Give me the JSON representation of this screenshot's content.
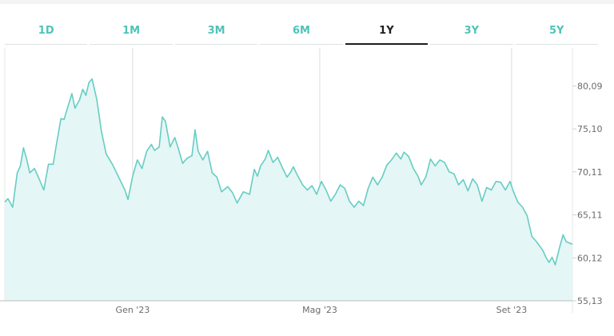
{
  "tabs": [
    {
      "label": "1D",
      "active": false
    },
    {
      "label": "1M",
      "active": false
    },
    {
      "label": "3M",
      "active": false
    },
    {
      "label": "6M",
      "active": false
    },
    {
      "label": "1Y",
      "active": true
    },
    {
      "label": "3Y",
      "active": false
    },
    {
      "label": "5Y",
      "active": false
    }
  ],
  "colors": {
    "tab_text": "#4fc3b8",
    "tab_active": "#1b1f22",
    "line": "#66cdc4",
    "area": "#e4f6f5"
  },
  "chart_data": {
    "type": "area",
    "title": "",
    "xlabel": "",
    "ylabel": "",
    "ylim": [
      55.13,
      84.5
    ],
    "y_ticks": [
      "55,13",
      "60,12",
      "65,11",
      "70,11",
      "75,10",
      "80,09"
    ],
    "y_tick_values": [
      55.13,
      60.12,
      65.11,
      70.11,
      75.1,
      80.09
    ],
    "x_ticks": [
      {
        "label": "Gen '23",
        "x": "2023-01-01"
      },
      {
        "label": "Mag '23",
        "x": "2023-05-01"
      },
      {
        "label": "Set '23",
        "x": "2023-09-01"
      }
    ],
    "x_range": [
      "2022-10-11",
      "2023-10-10"
    ],
    "grid": "vertical",
    "series": [
      {
        "values": [
          [
            "2022-10-11",
            66.6
          ],
          [
            "2022-10-13",
            67.0
          ],
          [
            "2022-10-16",
            66.0
          ],
          [
            "2022-10-19",
            70.0
          ],
          [
            "2022-10-21",
            70.8
          ],
          [
            "2022-10-23",
            72.9
          ],
          [
            "2022-10-25",
            71.6
          ],
          [
            "2022-10-27",
            70.0
          ],
          [
            "2022-10-30",
            70.5
          ],
          [
            "2022-11-02",
            69.3
          ],
          [
            "2022-11-05",
            68.0
          ],
          [
            "2022-11-08",
            71.0
          ],
          [
            "2022-11-11",
            71.0
          ],
          [
            "2022-11-13",
            73.2
          ],
          [
            "2022-11-16",
            76.3
          ],
          [
            "2022-11-18",
            76.2
          ],
          [
            "2022-11-21",
            78.0
          ],
          [
            "2022-11-23",
            79.2
          ],
          [
            "2022-11-25",
            77.5
          ],
          [
            "2022-11-28",
            78.5
          ],
          [
            "2022-11-30",
            79.7
          ],
          [
            "2022-12-02",
            79.0
          ],
          [
            "2022-12-04",
            80.5
          ],
          [
            "2022-12-06",
            80.9
          ],
          [
            "2022-12-09",
            78.5
          ],
          [
            "2022-12-12",
            74.8
          ],
          [
            "2022-12-15",
            72.2
          ],
          [
            "2022-12-19",
            71.0
          ],
          [
            "2022-12-23",
            69.5
          ],
          [
            "2022-12-27",
            68.0
          ],
          [
            "2022-12-29",
            66.9
          ],
          [
            "2023-01-01",
            69.6
          ],
          [
            "2023-01-04",
            71.5
          ],
          [
            "2023-01-07",
            70.5
          ],
          [
            "2023-01-10",
            72.5
          ],
          [
            "2023-01-13",
            73.3
          ],
          [
            "2023-01-15",
            72.6
          ],
          [
            "2023-01-18",
            73.0
          ],
          [
            "2023-01-20",
            76.5
          ],
          [
            "2023-01-22",
            76.0
          ],
          [
            "2023-01-25",
            73.0
          ],
          [
            "2023-01-28",
            74.1
          ],
          [
            "2023-01-30",
            73.0
          ],
          [
            "2023-02-02",
            71.1
          ],
          [
            "2023-02-05",
            71.7
          ],
          [
            "2023-02-08",
            72.0
          ],
          [
            "2023-02-10",
            75.0
          ],
          [
            "2023-02-12",
            72.5
          ],
          [
            "2023-02-15",
            71.5
          ],
          [
            "2023-02-18",
            72.5
          ],
          [
            "2023-02-21",
            70.0
          ],
          [
            "2023-02-24",
            69.5
          ],
          [
            "2023-02-27",
            67.8
          ],
          [
            "2023-03-03",
            68.4
          ],
          [
            "2023-03-06",
            67.7
          ],
          [
            "2023-03-09",
            66.5
          ],
          [
            "2023-03-13",
            67.8
          ],
          [
            "2023-03-17",
            67.5
          ],
          [
            "2023-03-20",
            70.4
          ],
          [
            "2023-03-22",
            69.6
          ],
          [
            "2023-03-24",
            70.8
          ],
          [
            "2023-03-27",
            71.6
          ],
          [
            "2023-03-29",
            72.6
          ],
          [
            "2023-04-01",
            71.2
          ],
          [
            "2023-04-04",
            71.8
          ],
          [
            "2023-04-07",
            70.6
          ],
          [
            "2023-04-10",
            69.5
          ],
          [
            "2023-04-12",
            70.0
          ],
          [
            "2023-04-14",
            70.7
          ],
          [
            "2023-04-17",
            69.6
          ],
          [
            "2023-04-20",
            68.6
          ],
          [
            "2023-04-23",
            68.0
          ],
          [
            "2023-04-26",
            68.5
          ],
          [
            "2023-04-29",
            67.5
          ],
          [
            "2023-05-02",
            69.0
          ],
          [
            "2023-05-05",
            68.0
          ],
          [
            "2023-05-08",
            66.7
          ],
          [
            "2023-05-11",
            67.5
          ],
          [
            "2023-05-14",
            68.6
          ],
          [
            "2023-05-17",
            68.2
          ],
          [
            "2023-05-20",
            66.7
          ],
          [
            "2023-05-23",
            66.0
          ],
          [
            "2023-05-26",
            66.7
          ],
          [
            "2023-05-29",
            66.2
          ],
          [
            "2023-06-01",
            68.2
          ],
          [
            "2023-06-04",
            69.5
          ],
          [
            "2023-06-07",
            68.6
          ],
          [
            "2023-06-10",
            69.5
          ],
          [
            "2023-06-13",
            70.9
          ],
          [
            "2023-06-16",
            71.5
          ],
          [
            "2023-06-19",
            72.3
          ],
          [
            "2023-06-22",
            71.6
          ],
          [
            "2023-06-24",
            72.4
          ],
          [
            "2023-06-27",
            71.9
          ],
          [
            "2023-06-30",
            70.5
          ],
          [
            "2023-07-03",
            69.6
          ],
          [
            "2023-07-05",
            68.6
          ],
          [
            "2023-07-08",
            69.5
          ],
          [
            "2023-07-11",
            71.6
          ],
          [
            "2023-07-14",
            70.8
          ],
          [
            "2023-07-17",
            71.5
          ],
          [
            "2023-07-20",
            71.2
          ],
          [
            "2023-07-23",
            70.1
          ],
          [
            "2023-07-26",
            69.9
          ],
          [
            "2023-07-29",
            68.6
          ],
          [
            "2023-08-01",
            69.2
          ],
          [
            "2023-08-04",
            67.9
          ],
          [
            "2023-08-07",
            69.3
          ],
          [
            "2023-08-10",
            68.6
          ],
          [
            "2023-08-13",
            66.7
          ],
          [
            "2023-08-16",
            68.3
          ],
          [
            "2023-08-19",
            68.0
          ],
          [
            "2023-08-22",
            69.0
          ],
          [
            "2023-08-25",
            68.9
          ],
          [
            "2023-08-28",
            68.0
          ],
          [
            "2023-08-31",
            69.0
          ],
          [
            "2023-09-02",
            67.9
          ],
          [
            "2023-09-05",
            66.6
          ],
          [
            "2023-09-08",
            66.0
          ],
          [
            "2023-09-11",
            65.0
          ],
          [
            "2023-09-14",
            62.6
          ],
          [
            "2023-09-17",
            62.0
          ],
          [
            "2023-09-19",
            61.5
          ],
          [
            "2023-09-21",
            61.0
          ],
          [
            "2023-09-23",
            60.2
          ],
          [
            "2023-09-25",
            59.6
          ],
          [
            "2023-09-27",
            60.2
          ],
          [
            "2023-09-29",
            59.3
          ],
          [
            "2023-10-02",
            61.5
          ],
          [
            "2023-10-04",
            62.8
          ],
          [
            "2023-10-06",
            62.0
          ],
          [
            "2023-10-10",
            61.7
          ]
        ]
      }
    ]
  }
}
